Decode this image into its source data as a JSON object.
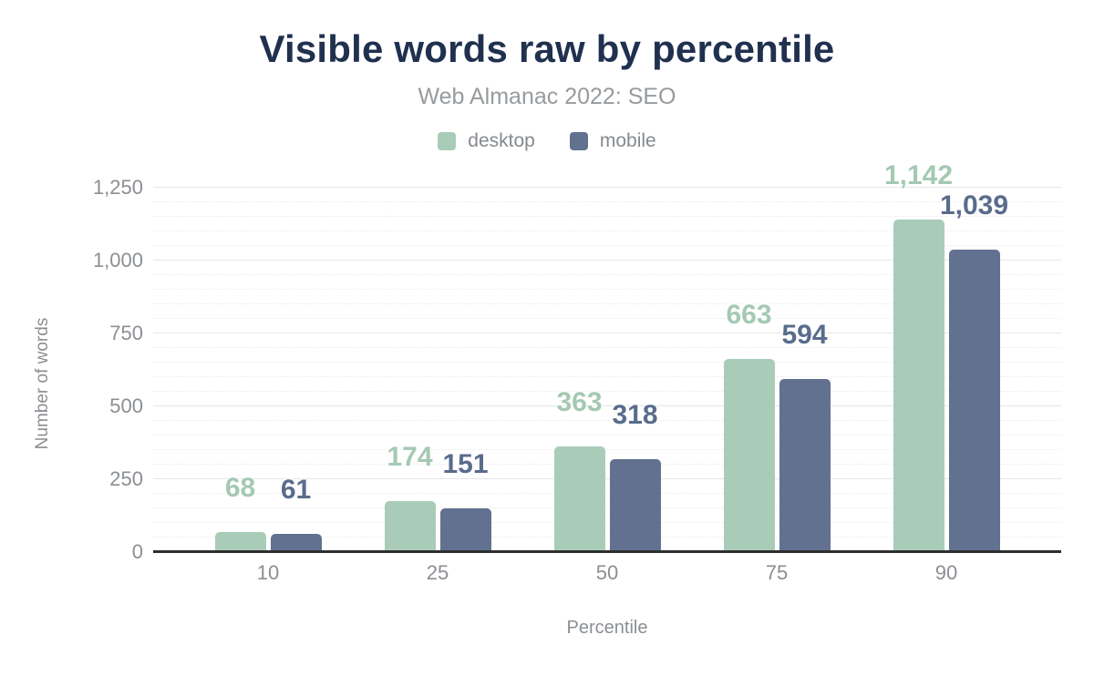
{
  "chart_data": {
    "type": "bar",
    "title": "Visible words raw by percentile",
    "subtitle": "Web Almanac 2022: SEO",
    "xlabel": "Percentile",
    "ylabel": "Number of words",
    "categories": [
      "10",
      "25",
      "50",
      "75",
      "90"
    ],
    "series": [
      {
        "name": "desktop",
        "color": "#a9ccb8",
        "label_color": "#a4c9b3",
        "values": [
          68,
          174,
          363,
          663,
          1142
        ],
        "value_labels": [
          "68",
          "174",
          "363",
          "663",
          "1,142"
        ]
      },
      {
        "name": "mobile",
        "color": "#61718f",
        "label_color": "#5a6c8c",
        "values": [
          61,
          151,
          318,
          594,
          1039
        ],
        "value_labels": [
          "61",
          "151",
          "318",
          "594",
          "1,039"
        ]
      }
    ],
    "ylim": [
      0,
      1300
    ],
    "yticks": [
      0,
      250,
      500,
      750,
      1000,
      1250
    ],
    "ytick_labels": [
      "0",
      "250",
      "500",
      "750",
      "1,000",
      "1,250"
    ],
    "minor_grid_step": 50,
    "grid": true,
    "legend_position": "top"
  },
  "colors": {
    "title": "#20304f",
    "subtitle": "#979b9e",
    "tick_text": "#8b8f93",
    "axis_line": "#2e2e2e",
    "major_grid": "#e6e6e6",
    "minor_grid": "#ebebeb",
    "background": "#ffffff"
  }
}
